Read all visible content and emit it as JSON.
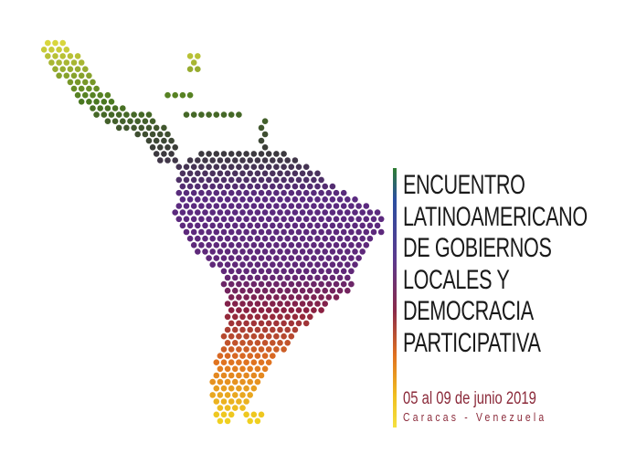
{
  "event": {
    "title_lines": [
      "ENCUENTRO",
      "LATINOAMERICANO",
      "DE GOBIERNOS",
      "LOCALES Y",
      "DEMOCRACIA",
      "PARTICIPATIVA"
    ],
    "date": "05 al 09 de junio 2019",
    "location": "Caracas - Venezuela"
  },
  "logo": {
    "description_icon": "dotted-latin-america-map-icon",
    "gradient_colors": [
      "#e8e040",
      "#4a7a20",
      "#3a3a3a",
      "#5a2a80",
      "#8a2040",
      "#e07020",
      "#f0d020"
    ],
    "text_color": "#1a1a1a",
    "accent_color": "#8b2a3a"
  }
}
